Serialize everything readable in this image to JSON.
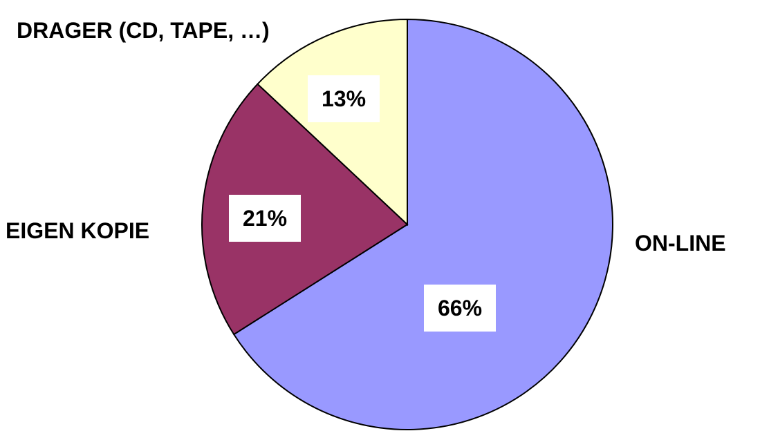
{
  "chart_data": {
    "type": "pie",
    "categories": [
      "ON-LINE",
      "EIGEN KOPIE",
      "DRAGER (CD, TAPE, …)"
    ],
    "values": [
      66,
      21,
      13
    ],
    "data_labels": [
      "66%",
      "21%",
      "13%"
    ],
    "colors": [
      "#9999FF",
      "#993366",
      "#FFFFCC"
    ],
    "start_angle": "12 o'clock",
    "direction": "clockwise",
    "legend": "none"
  }
}
